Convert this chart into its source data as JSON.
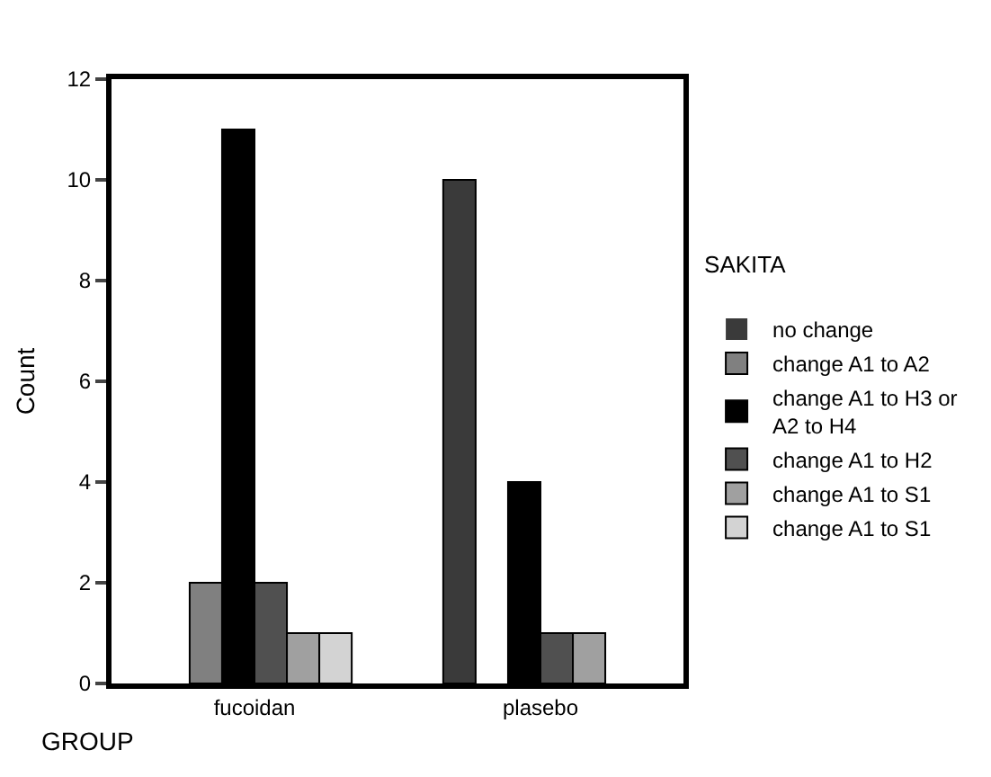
{
  "chart_data": {
    "type": "bar",
    "xlabel": "GROUP",
    "ylabel": "Count",
    "legend_title": "SAKITA",
    "categories": [
      "fucoidan",
      "plasebo"
    ],
    "series": [
      {
        "name": "no change",
        "color": "#3a3a3a",
        "values": [
          0,
          10
        ]
      },
      {
        "name": "change A1 to A2",
        "color": "#808080",
        "values": [
          2,
          0
        ]
      },
      {
        "name": "change A1 to H3 or A2 to H4",
        "color": "#000000",
        "values": [
          11,
          4
        ]
      },
      {
        "name": "change A1 to H2",
        "color": "#505050",
        "values": [
          2,
          1
        ]
      },
      {
        "name": "change A1 to S1",
        "color": "#a0a0a0",
        "values": [
          1,
          1
        ]
      },
      {
        "name": "change A1 to S1",
        "color": "#d3d3d3",
        "values": [
          1,
          0
        ]
      }
    ],
    "ylim": [
      0,
      12
    ],
    "yticks": [
      0,
      2,
      4,
      6,
      8,
      10,
      12
    ],
    "legend": "right"
  }
}
